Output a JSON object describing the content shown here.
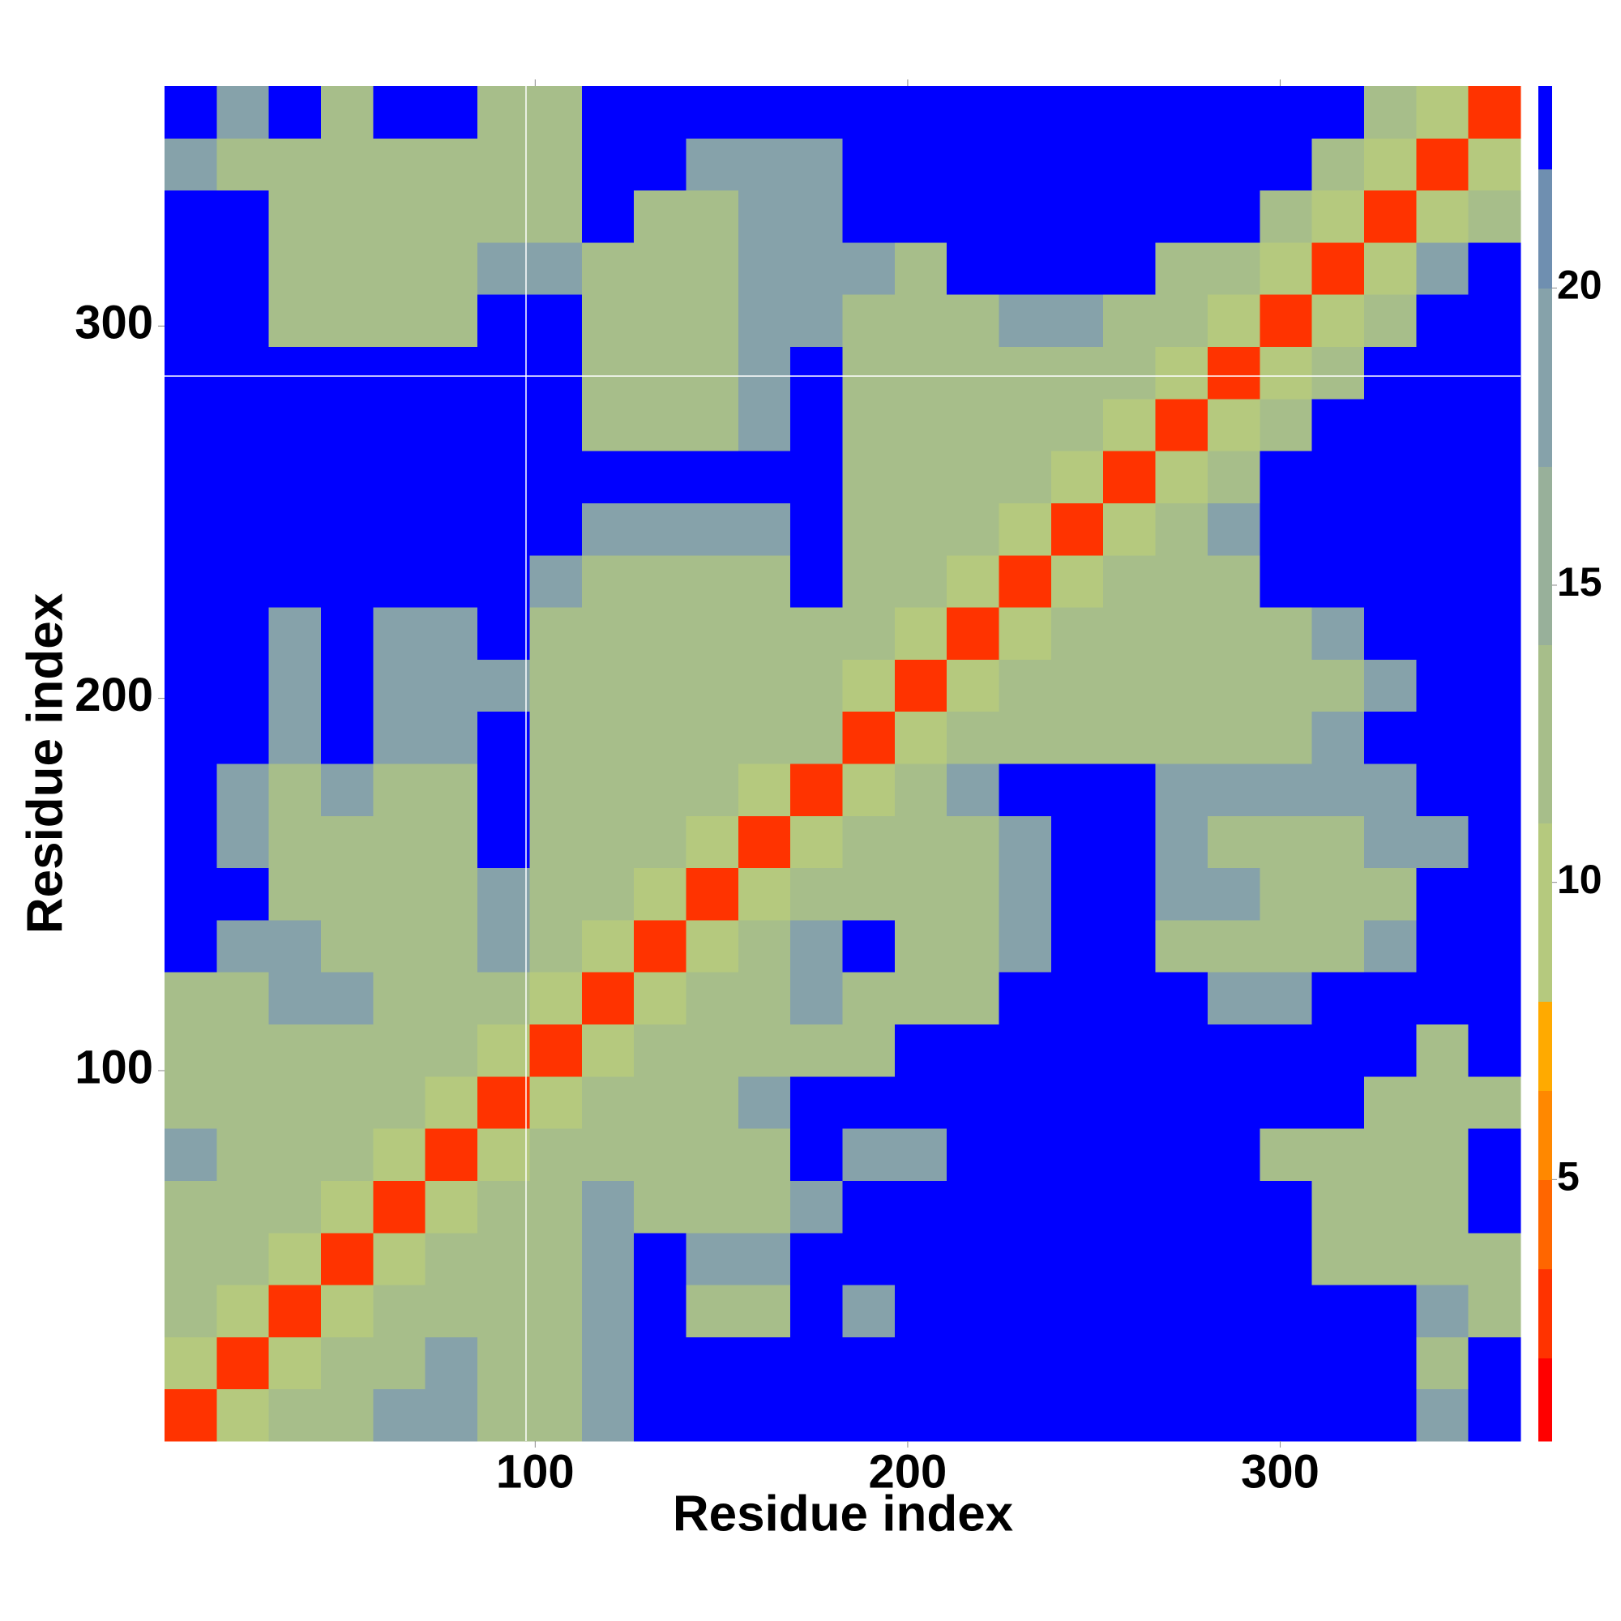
{
  "chart_data": {
    "type": "heatmap",
    "xlabel": "Residue index",
    "ylabel": "Residue index",
    "x": [
      7.5,
      21.5,
      35.5,
      49.5,
      63.5,
      77.5,
      91.5,
      105.5,
      119.5,
      133.5,
      147.5,
      161.5,
      175.5,
      189.5,
      203.5,
      217.5,
      231.5,
      245.5,
      259.5,
      273.5,
      287.5,
      301.5,
      315.5,
      329.5,
      343.5,
      357.5
    ],
    "y": [
      7.5,
      21.5,
      35.5,
      49.5,
      63.5,
      77.5,
      91.5,
      105.5,
      119.5,
      133.5,
      147.5,
      161.5,
      175.5,
      189.5,
      203.5,
      217.5,
      231.5,
      245.5,
      259.5,
      273.5,
      287.5,
      301.5,
      315.5,
      329.5,
      343.5,
      357.5
    ],
    "z": [
      [
        3,
        9,
        12,
        12,
        18,
        18,
        12,
        12,
        18,
        23,
        23,
        23,
        23,
        23,
        23,
        23,
        23,
        23,
        23,
        23,
        23,
        23,
        23,
        23,
        18,
        23
      ],
      [
        9,
        3,
        9,
        12,
        12,
        18,
        12,
        12,
        18,
        23,
        23,
        23,
        23,
        23,
        23,
        23,
        23,
        23,
        23,
        23,
        23,
        23,
        23,
        23,
        12,
        23
      ],
      [
        12,
        9,
        3,
        9,
        12,
        12,
        12,
        12,
        18,
        23,
        12,
        12,
        23,
        18,
        23,
        23,
        23,
        23,
        23,
        23,
        23,
        23,
        23,
        23,
        18,
        12
      ],
      [
        12,
        12,
        9,
        3,
        9,
        12,
        12,
        12,
        18,
        23,
        18,
        18,
        23,
        23,
        23,
        23,
        23,
        23,
        23,
        23,
        23,
        23,
        12,
        12,
        12,
        12
      ],
      [
        12,
        12,
        12,
        9,
        3,
        9,
        12,
        12,
        18,
        12,
        12,
        12,
        18,
        23,
        23,
        23,
        23,
        23,
        23,
        23,
        23,
        23,
        12,
        12,
        12,
        23
      ],
      [
        18,
        12,
        12,
        12,
        9,
        3,
        9,
        12,
        12,
        12,
        12,
        12,
        23,
        18,
        18,
        23,
        23,
        23,
        23,
        23,
        23,
        12,
        12,
        12,
        12,
        23
      ],
      [
        12,
        12,
        12,
        12,
        12,
        9,
        3,
        9,
        12,
        12,
        12,
        18,
        23,
        23,
        23,
        23,
        23,
        23,
        23,
        23,
        23,
        23,
        23,
        12,
        12,
        12
      ],
      [
        12,
        12,
        12,
        12,
        12,
        12,
        9,
        3,
        9,
        12,
        12,
        12,
        12,
        12,
        23,
        23,
        23,
        23,
        23,
        23,
        23,
        23,
        23,
        23,
        12,
        23
      ],
      [
        12,
        12,
        18,
        18,
        12,
        12,
        12,
        9,
        3,
        9,
        12,
        12,
        18,
        12,
        12,
        12,
        23,
        23,
        23,
        23,
        18,
        18,
        23,
        23,
        23,
        23
      ],
      [
        23,
        18,
        18,
        12,
        12,
        12,
        18,
        12,
        9,
        3,
        9,
        12,
        18,
        23,
        12,
        12,
        18,
        23,
        23,
        12,
        12,
        12,
        12,
        18,
        23,
        23
      ],
      [
        23,
        23,
        12,
        12,
        12,
        12,
        18,
        12,
        12,
        9,
        3,
        9,
        12,
        12,
        12,
        12,
        18,
        23,
        23,
        18,
        18,
        12,
        12,
        12,
        23,
        23
      ],
      [
        23,
        18,
        12,
        12,
        12,
        12,
        23,
        12,
        12,
        12,
        9,
        3,
        9,
        12,
        12,
        12,
        18,
        23,
        23,
        18,
        12,
        12,
        12,
        18,
        18,
        23
      ],
      [
        23,
        18,
        12,
        18,
        12,
        12,
        23,
        12,
        12,
        12,
        12,
        9,
        3,
        9,
        12,
        18,
        23,
        23,
        23,
        18,
        18,
        18,
        18,
        18,
        23,
        23
      ],
      [
        23,
        23,
        18,
        23,
        18,
        18,
        23,
        12,
        12,
        12,
        12,
        12,
        12,
        3,
        9,
        12,
        12,
        12,
        12,
        12,
        12,
        12,
        18,
        23,
        23,
        23
      ],
      [
        23,
        23,
        18,
        23,
        18,
        18,
        18,
        12,
        12,
        12,
        12,
        12,
        12,
        9,
        3,
        9,
        12,
        12,
        12,
        12,
        12,
        12,
        12,
        18,
        23,
        23
      ],
      [
        23,
        23,
        18,
        23,
        18,
        18,
        23,
        12,
        12,
        12,
        12,
        12,
        12,
        12,
        9,
        3,
        9,
        12,
        12,
        12,
        12,
        12,
        18,
        23,
        23,
        23
      ],
      [
        23,
        23,
        23,
        23,
        23,
        23,
        23,
        18,
        12,
        12,
        12,
        12,
        23,
        12,
        12,
        9,
        3,
        9,
        12,
        12,
        12,
        23,
        23,
        23,
        23,
        23
      ],
      [
        23,
        23,
        23,
        23,
        23,
        23,
        23,
        23,
        18,
        18,
        18,
        18,
        23,
        12,
        12,
        12,
        9,
        3,
        9,
        12,
        18,
        23,
        23,
        23,
        23,
        23
      ],
      [
        23,
        23,
        23,
        23,
        23,
        23,
        23,
        23,
        23,
        23,
        23,
        23,
        23,
        12,
        12,
        12,
        12,
        9,
        3,
        9,
        12,
        23,
        23,
        23,
        23,
        23
      ],
      [
        23,
        23,
        23,
        23,
        23,
        23,
        23,
        23,
        12,
        12,
        12,
        18,
        23,
        12,
        12,
        12,
        12,
        12,
        9,
        3,
        9,
        12,
        23,
        23,
        23,
        23
      ],
      [
        23,
        23,
        23,
        23,
        23,
        23,
        23,
        23,
        12,
        12,
        12,
        18,
        23,
        12,
        12,
        12,
        12,
        12,
        12,
        9,
        3,
        9,
        12,
        23,
        23,
        23
      ],
      [
        23,
        23,
        12,
        12,
        12,
        12,
        23,
        23,
        12,
        12,
        12,
        18,
        18,
        12,
        12,
        12,
        18,
        18,
        12,
        12,
        9,
        3,
        9,
        12,
        23,
        23
      ],
      [
        23,
        23,
        12,
        12,
        12,
        12,
        18,
        18,
        12,
        12,
        12,
        18,
        18,
        18,
        12,
        23,
        23,
        23,
        23,
        12,
        12,
        9,
        3,
        9,
        18,
        23
      ],
      [
        23,
        23,
        12,
        12,
        12,
        12,
        12,
        12,
        23,
        12,
        12,
        18,
        18,
        23,
        23,
        23,
        23,
        23,
        23,
        23,
        23,
        12,
        9,
        3,
        9,
        12
      ],
      [
        18,
        12,
        12,
        12,
        12,
        12,
        12,
        12,
        23,
        23,
        18,
        18,
        18,
        23,
        23,
        23,
        23,
        23,
        23,
        23,
        23,
        23,
        12,
        9,
        3,
        9
      ],
      [
        23,
        18,
        23,
        12,
        23,
        23,
        12,
        12,
        23,
        23,
        23,
        23,
        23,
        23,
        23,
        23,
        23,
        23,
        23,
        23,
        23,
        23,
        23,
        12,
        9,
        3
      ]
    ],
    "xlim": [
      0.5,
      364.5
    ],
    "ylim": [
      0.5,
      364.5
    ],
    "xticks": [
      100,
      200,
      300
    ],
    "yticks": [
      100,
      200,
      300
    ],
    "colorbar": {
      "lim": [
        0.6,
        23.4
      ],
      "ticks": [
        5,
        10,
        15,
        20
      ],
      "bounds": [
        0.6,
        2,
        3.5,
        5,
        6.5,
        8,
        11,
        14,
        17,
        20,
        22,
        23.4
      ],
      "colors": [
        "#ff0000",
        "#ff3300",
        "#ff6600",
        "#ff8800",
        "#ffaa00",
        "#b5c97e",
        "#a7be8a",
        "#98b09a",
        "#86a2aa",
        "#6f8fb0",
        "#0000ff"
      ]
    }
  }
}
